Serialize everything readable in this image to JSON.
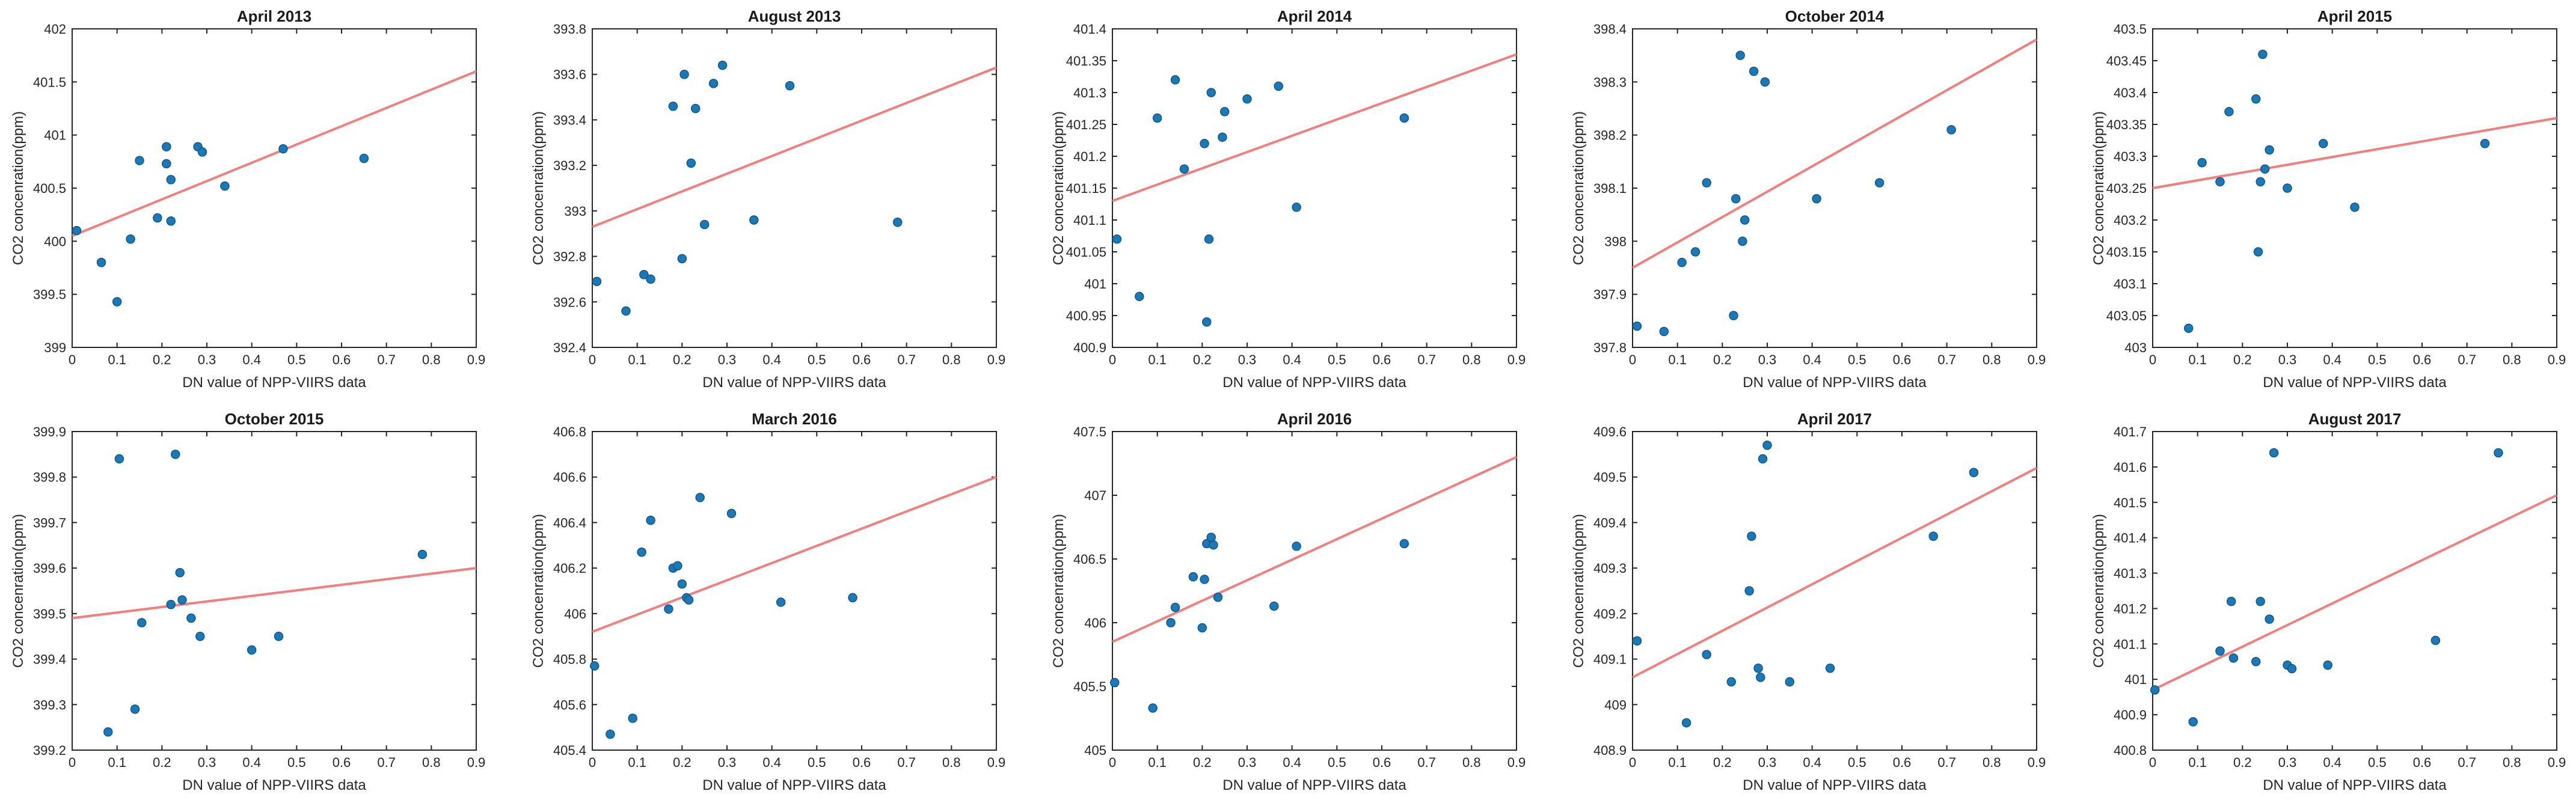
{
  "colors": {
    "point": "#1f77b4",
    "trend": "#f08080"
  },
  "chart_data": [
    {
      "type": "scatter",
      "title": "April 2013",
      "xlabel": "DN value of NPP-VIIRS data",
      "ylabel": "CO2 concenration(ppm)",
      "xlim": [
        0,
        0.9
      ],
      "ylim": [
        399,
        402
      ],
      "xticks": [
        "0",
        "0.1",
        "0.2",
        "0.3",
        "0.4",
        "0.5",
        "0.6",
        "0.7",
        "0.8",
        "0.9"
      ],
      "yticks": [
        "399",
        "399.5",
        "400",
        "400.5",
        "401",
        "401.5",
        "402"
      ],
      "points": [
        [
          0.01,
          400.1
        ],
        [
          0.065,
          399.8
        ],
        [
          0.1,
          399.43
        ],
        [
          0.13,
          400.02
        ],
        [
          0.15,
          400.76
        ],
        [
          0.19,
          400.22
        ],
        [
          0.21,
          400.73
        ],
        [
          0.21,
          400.89
        ],
        [
          0.22,
          400.58
        ],
        [
          0.22,
          400.19
        ],
        [
          0.28,
          400.89
        ],
        [
          0.29,
          400.84
        ],
        [
          0.34,
          400.52
        ],
        [
          0.47,
          400.87
        ],
        [
          0.65,
          400.78
        ]
      ],
      "fit": [
        [
          0,
          400.05
        ],
        [
          0.9,
          401.6
        ]
      ]
    },
    {
      "type": "scatter",
      "title": "August 2013",
      "xlabel": "DN value of NPP-VIIRS data",
      "ylabel": "CO2 concenration(ppm)",
      "xlim": [
        0,
        0.9
      ],
      "ylim": [
        392.4,
        393.8
      ],
      "xticks": [
        "0",
        "0.1",
        "0.2",
        "0.3",
        "0.4",
        "0.5",
        "0.6",
        "0.7",
        "0.8",
        "0.9"
      ],
      "yticks": [
        "392.4",
        "392.6",
        "392.8",
        "393",
        "393.2",
        "393.4",
        "393.6",
        "393.8"
      ],
      "points": [
        [
          0.01,
          392.69
        ],
        [
          0.075,
          392.56
        ],
        [
          0.115,
          392.72
        ],
        [
          0.13,
          392.7
        ],
        [
          0.18,
          393.46
        ],
        [
          0.2,
          392.79
        ],
        [
          0.205,
          393.6
        ],
        [
          0.22,
          393.21
        ],
        [
          0.23,
          393.45
        ],
        [
          0.25,
          392.94
        ],
        [
          0.27,
          393.56
        ],
        [
          0.29,
          393.64
        ],
        [
          0.36,
          392.96
        ],
        [
          0.44,
          393.55
        ],
        [
          0.68,
          392.95
        ]
      ],
      "fit": [
        [
          0,
          392.93
        ],
        [
          0.9,
          393.63
        ]
      ]
    },
    {
      "type": "scatter",
      "title": "April 2014",
      "xlabel": "DN value of NPP-VIIRS data",
      "ylabel": "CO2 concenration(ppm)",
      "xlim": [
        0,
        0.9
      ],
      "ylim": [
        400.9,
        401.4
      ],
      "xticks": [
        "0",
        "0.1",
        "0.2",
        "0.3",
        "0.4",
        "0.5",
        "0.6",
        "0.7",
        "0.8",
        "0.9"
      ],
      "yticks": [
        "400.9",
        "400.95",
        "401",
        "401.05",
        "401.1",
        "401.15",
        "401.2",
        "401.25",
        "401.3",
        "401.35",
        "401.4"
      ],
      "points": [
        [
          0.01,
          401.07
        ],
        [
          0.06,
          400.98
        ],
        [
          0.1,
          401.26
        ],
        [
          0.14,
          401.32
        ],
        [
          0.16,
          401.18
        ],
        [
          0.205,
          401.22
        ],
        [
          0.21,
          400.94
        ],
        [
          0.215,
          401.07
        ],
        [
          0.22,
          401.3
        ],
        [
          0.245,
          401.23
        ],
        [
          0.25,
          401.27
        ],
        [
          0.3,
          401.29
        ],
        [
          0.37,
          401.31
        ],
        [
          0.41,
          401.12
        ],
        [
          0.65,
          401.26
        ]
      ],
      "fit": [
        [
          0,
          401.13
        ],
        [
          0.9,
          401.36
        ]
      ]
    },
    {
      "type": "scatter",
      "title": "October 2014",
      "xlabel": "DN value of NPP-VIIRS data",
      "ylabel": "CO2 concenration(ppm)",
      "xlim": [
        0,
        0.9
      ],
      "ylim": [
        397.8,
        398.4
      ],
      "xticks": [
        "0",
        "0.1",
        "0.2",
        "0.3",
        "0.4",
        "0.5",
        "0.6",
        "0.7",
        "0.8",
        "0.9"
      ],
      "yticks": [
        "397.8",
        "397.9",
        "398",
        "398.1",
        "398.2",
        "398.3",
        "398.4"
      ],
      "points": [
        [
          0.01,
          397.84
        ],
        [
          0.07,
          397.83
        ],
        [
          0.11,
          397.96
        ],
        [
          0.14,
          397.98
        ],
        [
          0.165,
          398.11
        ],
        [
          0.225,
          397.86
        ],
        [
          0.23,
          398.08
        ],
        [
          0.24,
          398.35
        ],
        [
          0.245,
          398.0
        ],
        [
          0.25,
          398.04
        ],
        [
          0.27,
          398.32
        ],
        [
          0.295,
          398.3
        ],
        [
          0.41,
          398.08
        ],
        [
          0.55,
          398.11
        ],
        [
          0.71,
          398.21
        ]
      ],
      "fit": [
        [
          0,
          397.95
        ],
        [
          0.9,
          398.38
        ]
      ]
    },
    {
      "type": "scatter",
      "title": "April 2015",
      "xlabel": "DN value of NPP-VIIRS data",
      "ylabel": "CO2 concenration(ppm)",
      "xlim": [
        0,
        0.9
      ],
      "ylim": [
        403,
        403.5
      ],
      "xticks": [
        "0",
        "0.1",
        "0.2",
        "0.3",
        "0.4",
        "0.5",
        "0.6",
        "0.7",
        "0.8",
        "0.9"
      ],
      "yticks": [
        "403",
        "403.05",
        "403.1",
        "403.15",
        "403.2",
        "403.25",
        "403.3",
        "403.35",
        "403.4",
        "403.45",
        "403.5"
      ],
      "points": [
        [
          0.08,
          403.03
        ],
        [
          0.11,
          403.29
        ],
        [
          0.15,
          403.26
        ],
        [
          0.17,
          403.37
        ],
        [
          0.23,
          403.39
        ],
        [
          0.235,
          403.15
        ],
        [
          0.24,
          403.26
        ],
        [
          0.245,
          403.46
        ],
        [
          0.25,
          403.28
        ],
        [
          0.26,
          403.31
        ],
        [
          0.3,
          403.25
        ],
        [
          0.38,
          403.32
        ],
        [
          0.45,
          403.22
        ],
        [
          0.74,
          403.32
        ]
      ],
      "fit": [
        [
          0,
          403.25
        ],
        [
          0.9,
          403.36
        ]
      ]
    },
    {
      "type": "scatter",
      "title": "October 2015",
      "xlabel": "DN value of NPP-VIIRS data",
      "ylabel": "CO2 concenration(ppm)",
      "xlim": [
        0,
        0.9
      ],
      "ylim": [
        399.2,
        399.9
      ],
      "xticks": [
        "0",
        "0.1",
        "0.2",
        "0.3",
        "0.4",
        "0.5",
        "0.6",
        "0.7",
        "0.8",
        "0.9"
      ],
      "yticks": [
        "399.2",
        "399.3",
        "399.4",
        "399.5",
        "399.6",
        "399.7",
        "399.8",
        "399.9"
      ],
      "points": [
        [
          0.08,
          399.24
        ],
        [
          0.105,
          399.84
        ],
        [
          0.14,
          399.29
        ],
        [
          0.155,
          399.48
        ],
        [
          0.22,
          399.52
        ],
        [
          0.23,
          399.85
        ],
        [
          0.24,
          399.59
        ],
        [
          0.245,
          399.53
        ],
        [
          0.265,
          399.49
        ],
        [
          0.285,
          399.45
        ],
        [
          0.4,
          399.42
        ],
        [
          0.46,
          399.45
        ],
        [
          0.78,
          399.63
        ]
      ],
      "fit": [
        [
          0,
          399.49
        ],
        [
          0.9,
          399.6
        ]
      ]
    },
    {
      "type": "scatter",
      "title": "March 2016",
      "xlabel": "DN value of NPP-VIIRS data",
      "ylabel": "CO2 concenration(ppm)",
      "xlim": [
        0,
        0.9
      ],
      "ylim": [
        405.4,
        406.8
      ],
      "xticks": [
        "0",
        "0.1",
        "0.2",
        "0.3",
        "0.4",
        "0.5",
        "0.6",
        "0.7",
        "0.8",
        "0.9"
      ],
      "yticks": [
        "405.4",
        "405.6",
        "405.8",
        "406",
        "406.2",
        "406.4",
        "406.6",
        "406.8"
      ],
      "points": [
        [
          0.005,
          405.77
        ],
        [
          0.04,
          405.47
        ],
        [
          0.09,
          405.54
        ],
        [
          0.11,
          406.27
        ],
        [
          0.13,
          406.41
        ],
        [
          0.17,
          406.02
        ],
        [
          0.18,
          406.2
        ],
        [
          0.19,
          406.21
        ],
        [
          0.2,
          406.13
        ],
        [
          0.21,
          406.07
        ],
        [
          0.215,
          406.06
        ],
        [
          0.24,
          406.51
        ],
        [
          0.31,
          406.44
        ],
        [
          0.42,
          406.05
        ],
        [
          0.58,
          406.07
        ]
      ],
      "fit": [
        [
          0,
          405.92
        ],
        [
          0.9,
          406.6
        ]
      ]
    },
    {
      "type": "scatter",
      "title": "April 2016",
      "xlabel": "DN value of NPP-VIIRS data",
      "ylabel": "CO2 concenration(ppm)",
      "xlim": [
        0,
        0.9
      ],
      "ylim": [
        405,
        407.5
      ],
      "xticks": [
        "0",
        "0.1",
        "0.2",
        "0.3",
        "0.4",
        "0.5",
        "0.6",
        "0.7",
        "0.8",
        "0.9"
      ],
      "yticks": [
        "405",
        "405.5",
        "406",
        "406.5",
        "407",
        "407.5"
      ],
      "points": [
        [
          0.005,
          405.53
        ],
        [
          0.09,
          405.33
        ],
        [
          0.13,
          406.0
        ],
        [
          0.14,
          406.12
        ],
        [
          0.18,
          406.36
        ],
        [
          0.2,
          405.96
        ],
        [
          0.205,
          406.34
        ],
        [
          0.21,
          406.62
        ],
        [
          0.22,
          406.67
        ],
        [
          0.225,
          406.61
        ],
        [
          0.235,
          406.2
        ],
        [
          0.36,
          406.13
        ],
        [
          0.41,
          406.6
        ],
        [
          0.65,
          406.62
        ]
      ],
      "fit": [
        [
          0,
          405.85
        ],
        [
          0.9,
          407.3
        ]
      ]
    },
    {
      "type": "scatter",
      "title": "April 2017",
      "xlabel": "DN value of NPP-VIIRS data",
      "ylabel": "CO2 concenration(ppm)",
      "xlim": [
        0,
        0.9
      ],
      "ylim": [
        408.9,
        409.6
      ],
      "xticks": [
        "0",
        "0.1",
        "0.2",
        "0.3",
        "0.4",
        "0.5",
        "0.6",
        "0.7",
        "0.8",
        "0.9"
      ],
      "yticks": [
        "408.9",
        "409",
        "409.1",
        "409.2",
        "409.3",
        "409.4",
        "409.5",
        "409.6"
      ],
      "points": [
        [
          0.01,
          409.14
        ],
        [
          0.12,
          408.96
        ],
        [
          0.165,
          409.11
        ],
        [
          0.22,
          409.05
        ],
        [
          0.26,
          409.25
        ],
        [
          0.265,
          409.37
        ],
        [
          0.28,
          409.08
        ],
        [
          0.285,
          409.06
        ],
        [
          0.29,
          409.54
        ],
        [
          0.3,
          409.57
        ],
        [
          0.35,
          409.05
        ],
        [
          0.44,
          409.08
        ],
        [
          0.67,
          409.37
        ],
        [
          0.76,
          409.51
        ]
      ],
      "fit": [
        [
          0,
          409.06
        ],
        [
          0.9,
          409.52
        ]
      ]
    },
    {
      "type": "scatter",
      "title": "August 2017",
      "xlabel": "DN value of NPP-VIIRS data",
      "ylabel": "CO2 concenration(ppm)",
      "xlim": [
        0,
        0.9
      ],
      "ylim": [
        400.8,
        401.7
      ],
      "xticks": [
        "0",
        "0.1",
        "0.2",
        "0.3",
        "0.4",
        "0.5",
        "0.6",
        "0.7",
        "0.8",
        "0.9"
      ],
      "yticks": [
        "400.8",
        "400.9",
        "401",
        "401.1",
        "401.2",
        "401.3",
        "401.4",
        "401.5",
        "401.6",
        "401.7"
      ],
      "points": [
        [
          0.005,
          400.97
        ],
        [
          0.09,
          400.88
        ],
        [
          0.15,
          401.08
        ],
        [
          0.175,
          401.22
        ],
        [
          0.18,
          401.06
        ],
        [
          0.23,
          401.05
        ],
        [
          0.24,
          401.22
        ],
        [
          0.26,
          401.17
        ],
        [
          0.27,
          401.64
        ],
        [
          0.3,
          401.04
        ],
        [
          0.31,
          401.03
        ],
        [
          0.39,
          401.04
        ],
        [
          0.63,
          401.11
        ],
        [
          0.77,
          401.64
        ]
      ],
      "fit": [
        [
          0,
          400.97
        ],
        [
          0.9,
          401.52
        ]
      ]
    }
  ]
}
